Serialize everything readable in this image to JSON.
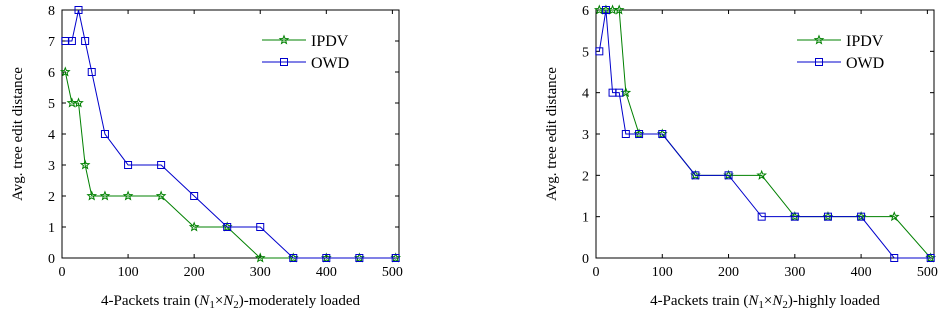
{
  "chart_data": [
    {
      "type": "line",
      "xlabel_parts": [
        "4-Packets train (",
        "N",
        "1",
        "×",
        "N",
        "2",
        ")-moderately loaded"
      ],
      "ylabel": "Avg. tree edit distance",
      "xlim": [
        0,
        510
      ],
      "ylim": [
        0,
        8
      ],
      "xticks": [
        0,
        100,
        200,
        300,
        400,
        500
      ],
      "yticks": [
        0,
        1,
        2,
        3,
        4,
        5,
        6,
        7,
        8
      ],
      "legend_position": "top-right",
      "series": [
        {
          "name": "IPDV",
          "color": "#008000",
          "marker": "star",
          "x": [
            5,
            15,
            25,
            35,
            45,
            65,
            100,
            150,
            200,
            250,
            300,
            350,
            400,
            450,
            505
          ],
          "y": [
            6,
            5,
            5,
            3,
            2,
            2,
            2,
            2,
            1,
            1,
            0,
            0,
            0,
            0,
            0
          ]
        },
        {
          "name": "OWD",
          "color": "#0000cc",
          "marker": "square",
          "x": [
            5,
            15,
            25,
            35,
            45,
            65,
            100,
            150,
            200,
            250,
            300,
            350,
            400,
            450,
            505
          ],
          "y": [
            7,
            7,
            8,
            7,
            6,
            4,
            3,
            3,
            2,
            1,
            1,
            0,
            0,
            0,
            0
          ]
        }
      ]
    },
    {
      "type": "line",
      "xlabel_parts": [
        "4-Packets train (",
        "N",
        "1",
        "×",
        "N",
        "2",
        ")-highly loaded"
      ],
      "ylabel": "Avg. tree edit distance",
      "xlim": [
        0,
        510
      ],
      "ylim": [
        0,
        6
      ],
      "xticks": [
        0,
        100,
        200,
        300,
        400,
        500
      ],
      "yticks": [
        0,
        1,
        2,
        3,
        4,
        5,
        6
      ],
      "legend_position": "top-right",
      "series": [
        {
          "name": "IPDV",
          "color": "#008000",
          "marker": "star",
          "x": [
            5,
            15,
            25,
            35,
            45,
            65,
            100,
            150,
            200,
            250,
            300,
            350,
            400,
            450,
            505
          ],
          "y": [
            6,
            6,
            6,
            6,
            4,
            3,
            3,
            2,
            2,
            2,
            1,
            1,
            1,
            1,
            0
          ]
        },
        {
          "name": "OWD",
          "color": "#0000cc",
          "marker": "square",
          "x": [
            5,
            15,
            25,
            35,
            45,
            65,
            100,
            150,
            200,
            250,
            300,
            350,
            400,
            450,
            505
          ],
          "y": [
            5,
            6,
            4,
            4,
            3,
            3,
            3,
            2,
            2,
            1,
            1,
            1,
            1,
            0,
            0
          ]
        }
      ]
    }
  ]
}
